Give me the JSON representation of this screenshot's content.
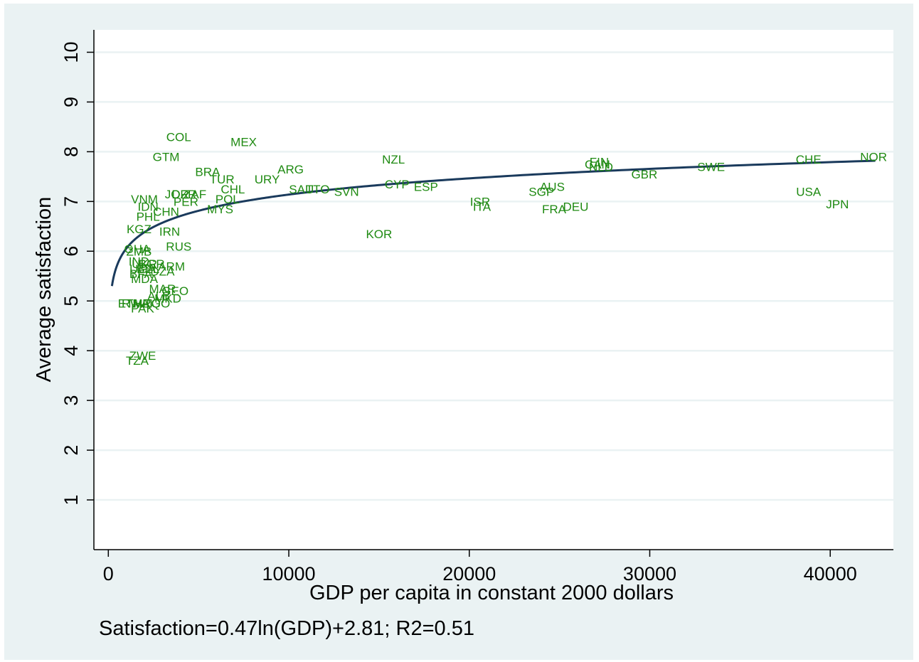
{
  "chart_data": {
    "type": "scatter",
    "title": "",
    "xlabel": "GDP per capita in constant 2000 dollars",
    "ylabel": "Average satisfaction",
    "note": "Satisfaction=0.47ln(GDP)+2.81; R2=0.51",
    "xlim": [
      -800,
      43500
    ],
    "ylim": [
      0.0,
      10.45
    ],
    "xticks": [
      0,
      10000,
      20000,
      30000,
      40000
    ],
    "xtick_labels": [
      "0",
      "10000",
      "20000",
      "30000",
      "40000"
    ],
    "yticks": [
      1,
      2,
      3,
      4,
      5,
      6,
      7,
      8,
      9,
      10
    ],
    "ytick_labels": [
      "1",
      "2",
      "3",
      "4",
      "5",
      "6",
      "7",
      "8",
      "9",
      "10"
    ],
    "grid": true,
    "marker_color": "#1f8a12",
    "fit_line_color": "#1a3a5c",
    "background_color": "#eaf2f3",
    "fit": {
      "a": 0.47,
      "b": 2.81,
      "x_range": [
        200,
        42500
      ]
    },
    "points": [
      {
        "label": "NOR",
        "x": 42400,
        "y": 7.9
      },
      {
        "label": "CHE",
        "x": 38800,
        "y": 7.85
      },
      {
        "label": "USA",
        "x": 38800,
        "y": 7.2
      },
      {
        "label": "JPN",
        "x": 40400,
        "y": 6.95
      },
      {
        "label": "SWE",
        "x": 33400,
        "y": 7.7
      },
      {
        "label": "GBR",
        "x": 29700,
        "y": 7.55
      },
      {
        "label": "FIN",
        "x": 27200,
        "y": 7.8
      },
      {
        "label": "CAN",
        "x": 27100,
        "y": 7.75
      },
      {
        "label": "NLD",
        "x": 27300,
        "y": 7.7
      },
      {
        "label": "AUS",
        "x": 24600,
        "y": 7.3
      },
      {
        "label": "SGP",
        "x": 24000,
        "y": 7.2
      },
      {
        "label": "DEU",
        "x": 25900,
        "y": 6.9
      },
      {
        "label": "FRA",
        "x": 24700,
        "y": 6.85
      },
      {
        "label": "ISR",
        "x": 20600,
        "y": 7.0
      },
      {
        "label": "ITA",
        "x": 20700,
        "y": 6.9
      },
      {
        "label": "NZL",
        "x": 15800,
        "y": 7.85
      },
      {
        "label": "CYP",
        "x": 16000,
        "y": 7.35
      },
      {
        "label": "ESP",
        "x": 17600,
        "y": 7.3
      },
      {
        "label": "KOR",
        "x": 15000,
        "y": 6.35
      },
      {
        "label": "ARG",
        "x": 10100,
        "y": 7.65
      },
      {
        "label": "URY",
        "x": 8800,
        "y": 7.45
      },
      {
        "label": "SAU",
        "x": 10700,
        "y": 7.25
      },
      {
        "label": "TTO",
        "x": 11600,
        "y": 7.25
      },
      {
        "label": "SVN",
        "x": 13200,
        "y": 7.2
      },
      {
        "label": "MEX",
        "x": 7500,
        "y": 8.2
      },
      {
        "label": "COL",
        "x": 3900,
        "y": 8.3
      },
      {
        "label": "GTM",
        "x": 3200,
        "y": 7.9
      },
      {
        "label": "BRA",
        "x": 5500,
        "y": 7.6
      },
      {
        "label": "TUR",
        "x": 6300,
        "y": 7.45
      },
      {
        "label": "CHL",
        "x": 6900,
        "y": 7.25
      },
      {
        "label": "POL",
        "x": 6600,
        "y": 7.05
      },
      {
        "label": "MYS",
        "x": 6200,
        "y": 6.85
      },
      {
        "label": "ZAF",
        "x": 4800,
        "y": 7.15
      },
      {
        "label": "DZR",
        "x": 4200,
        "y": 7.15
      },
      {
        "label": "JOR",
        "x": 3800,
        "y": 7.15
      },
      {
        "label": "PER",
        "x": 4300,
        "y": 7.0
      },
      {
        "label": "VNM",
        "x": 2000,
        "y": 7.05
      },
      {
        "label": "IDN",
        "x": 2200,
        "y": 6.9
      },
      {
        "label": "CHN",
        "x": 3200,
        "y": 6.8
      },
      {
        "label": "PHL",
        "x": 2200,
        "y": 6.7
      },
      {
        "label": "KGZ",
        "x": 1700,
        "y": 6.45
      },
      {
        "label": "IRN",
        "x": 3400,
        "y": 6.4
      },
      {
        "label": "RUS",
        "x": 3900,
        "y": 6.1
      },
      {
        "label": "GHA",
        "x": 1600,
        "y": 6.05
      },
      {
        "label": "ZMB",
        "x": 1700,
        "y": 6.0
      },
      {
        "label": "IND",
        "x": 1700,
        "y": 5.8
      },
      {
        "label": "BGR",
        "x": 2400,
        "y": 5.75
      },
      {
        "label": "ARM",
        "x": 3500,
        "y": 5.7
      },
      {
        "label": "UKR",
        "x": 2000,
        "y": 5.75
      },
      {
        "label": "UGA",
        "x": 1900,
        "y": 5.65
      },
      {
        "label": "BEL",
        "x": 2200,
        "y": 5.65
      },
      {
        "label": "DZA",
        "x": 3000,
        "y": 5.6
      },
      {
        "label": "BFA",
        "x": 1800,
        "y": 5.55
      },
      {
        "label": "MDA",
        "x": 2000,
        "y": 5.45
      },
      {
        "label": "MAR",
        "x": 3000,
        "y": 5.25
      },
      {
        "label": "GEO",
        "x": 3700,
        "y": 5.2
      },
      {
        "label": "ALB",
        "x": 2800,
        "y": 5.1
      },
      {
        "label": "MKD",
        "x": 3300,
        "y": 5.05
      },
      {
        "label": "ETH",
        "x": 1200,
        "y": 4.95
      },
      {
        "label": "RWA",
        "x": 1500,
        "y": 4.95
      },
      {
        "label": "MLI",
        "x": 1900,
        "y": 4.95
      },
      {
        "label": "IRQ",
        "x": 2300,
        "y": 4.95
      },
      {
        "label": "PAK",
        "x": 1900,
        "y": 4.85
      },
      {
        "label": "TGO",
        "x": 2700,
        "y": 4.95
      },
      {
        "label": "ZWE",
        "x": 1900,
        "y": 3.9
      },
      {
        "label": "TZA",
        "x": 1600,
        "y": 3.8
      }
    ]
  }
}
